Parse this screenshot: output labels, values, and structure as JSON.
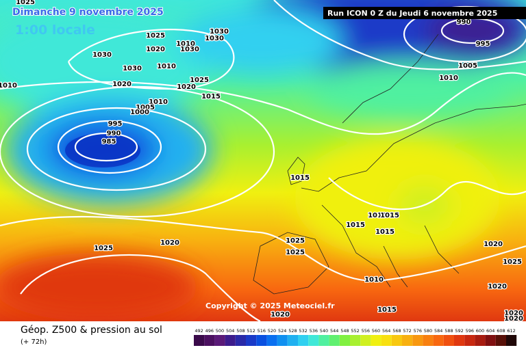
{
  "header": {
    "date": "Dimanche 9 novembre 2025",
    "time": "1:00 locale",
    "run": "Run ICON 0 Z du Jeudi 6 novembre 2025"
  },
  "copyright": "Copyright © 2025 Meteociel.fr",
  "footer": {
    "title": "Géop. Z500 & pression au sol",
    "lead": "(+ 72h)"
  },
  "isobar_labels": [
    "1025",
    "1030",
    "1025",
    "1030",
    "1010",
    "1030",
    "1020",
    "1030",
    "1030",
    "1010",
    "1020",
    "1025",
    "1020",
    "1015",
    "1010",
    "1005",
    "1000",
    "995",
    "990",
    "985",
    "1010",
    "990",
    "995",
    "1005",
    "1010",
    "1015",
    "1025",
    "1020",
    "1025",
    "1025",
    "1015",
    "1010",
    "1015",
    "1015",
    "1010",
    "1015",
    "1020",
    "1025",
    "1020",
    "1020",
    "1020",
    "1020"
  ],
  "scale": {
    "labels": [
      492,
      496,
      500,
      504,
      508,
      512,
      516,
      520,
      524,
      528,
      532,
      536,
      540,
      544,
      548,
      552,
      556,
      560,
      564,
      568,
      572,
      576,
      580,
      584,
      588,
      592,
      596,
      600,
      604,
      608,
      612
    ],
    "colors": [
      "#3a0a4a",
      "#4b1060",
      "#5a1a78",
      "#3c1c8c",
      "#2a2aa8",
      "#1a3ac8",
      "#0a50e0",
      "#0a70f0",
      "#1090f0",
      "#20b0f0",
      "#30d0f0",
      "#40e8d8",
      "#50f0a0",
      "#60f070",
      "#80f040",
      "#a8f030",
      "#d0f020",
      "#f0f010",
      "#f8e010",
      "#f8c810",
      "#f8b010",
      "#f89810",
      "#f88010",
      "#f86810",
      "#f05010",
      "#e03810",
      "#c82810",
      "#a81c10",
      "#801010",
      "#581008",
      "#200808"
    ]
  }
}
